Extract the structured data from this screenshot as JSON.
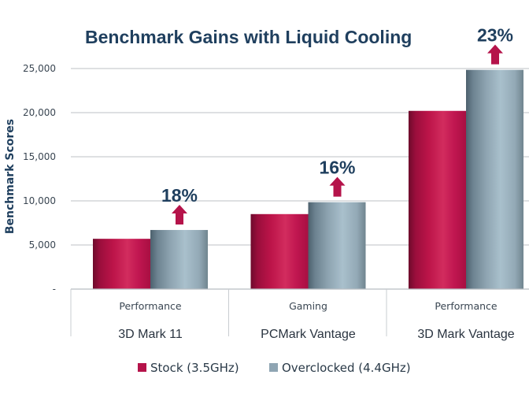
{
  "chart_data": {
    "type": "bar",
    "title": "Benchmark Gains with Liquid Cooling",
    "xlabel": "",
    "ylabel": "Benchmark Scores",
    "ylim": [
      0,
      25000
    ],
    "yticks": [
      0,
      5000,
      10000,
      15000,
      20000,
      25000
    ],
    "ytick_labels": [
      "-",
      "5,000",
      "10,000",
      "15,000",
      "20,000",
      "25,000"
    ],
    "grid": true,
    "legend_position": "bottom",
    "categories": [
      {
        "name": "3D Mark 11",
        "subtitle": "Performance"
      },
      {
        "name": "PCMark Vantage",
        "subtitle": "Gaming"
      },
      {
        "name": "3D Mark Vantage",
        "subtitle": "Performance"
      }
    ],
    "series": [
      {
        "name": "Stock (3.5GHz)",
        "color": "#b5134a",
        "values": [
          5700,
          8500,
          20200
        ]
      },
      {
        "name": "Overclocked (4.4GHz)",
        "color": "#8fa5b3",
        "values": [
          6700,
          9850,
          24850
        ]
      }
    ],
    "annotations": [
      {
        "category": "3D Mark 11",
        "label": "18%",
        "icon": "up-arrow-icon"
      },
      {
        "category": "PCMark Vantage",
        "label": "16%",
        "icon": "up-arrow-icon"
      },
      {
        "category": "3D Mark Vantage",
        "label": "23%",
        "icon": "up-arrow-icon"
      }
    ],
    "annotation_color": "#b5134a",
    "text_color": "#1f3f5e"
  }
}
